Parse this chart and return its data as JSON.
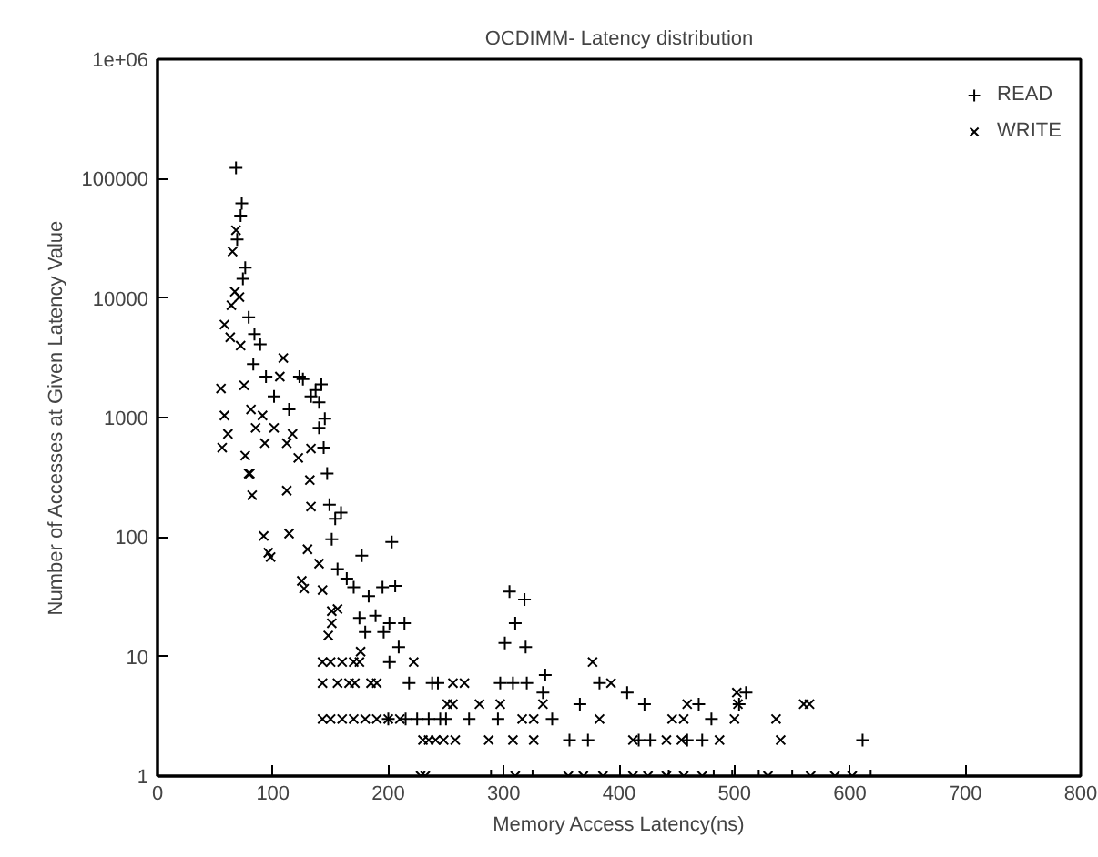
{
  "chart_data": {
    "type": "scatter",
    "title": "OCDIMM- Latency distribution",
    "xlabel": "Memory Access Latency(ns)",
    "ylabel": "Number of Accesses at Given Latency Value",
    "log": "y",
    "xlim": [
      0,
      800
    ],
    "ylim": [
      1,
      1000000
    ],
    "xticks": [
      0,
      100,
      200,
      300,
      400,
      500,
      600,
      700,
      800
    ],
    "yticks": [
      1,
      10,
      100,
      1000,
      10000,
      100000,
      {
        "value": 1000000,
        "label": "1e+06"
      }
    ],
    "grid": false,
    "legend": "top right",
    "series": [
      {
        "name": "READ",
        "color": "#000000",
        "marker": "cross",
        "x": [
          68,
          73,
          72,
          69,
          76,
          74,
          79,
          84,
          89,
          83,
          94,
          101,
          123,
          126,
          142,
          137,
          140,
          145,
          140,
          144,
          133,
          114,
          147,
          149,
          159,
          154,
          203,
          151,
          177,
          156,
          164,
          170,
          195,
          206,
          183,
          189,
          175,
          201,
          214,
          180,
          196,
          209,
          201,
          218,
          238,
          200,
          215,
          225,
          235,
          245,
          305,
          318,
          310,
          301,
          319,
          243,
          297,
          308,
          320,
          336,
          334,
          366,
          383,
          407,
          422,
          469,
          480,
          510,
          504,
          611,
          357,
          373,
          417,
          427,
          459,
          472,
          342,
          250,
          270,
          295,
          289,
          325,
          443,
          482,
          498,
          521,
          550,
          618
        ],
        "values": [
          123000,
          62000,
          49000,
          31000,
          18000,
          14500,
          6900,
          5000,
          4100,
          2800,
          2200,
          1500,
          2200,
          2100,
          1900,
          1700,
          1340,
          980,
          820,
          560,
          1500,
          1170,
          340,
          187,
          160,
          142,
          91,
          96,
          70,
          54,
          45,
          38,
          38,
          39,
          32,
          22,
          21,
          19,
          19,
          16,
          16,
          12,
          9,
          6,
          6,
          3,
          3,
          3,
          3,
          3,
          35,
          30,
          19,
          13,
          12,
          6,
          6,
          6,
          6,
          7,
          5,
          4,
          6,
          5,
          4,
          4,
          3,
          5,
          4,
          2,
          2,
          2,
          2,
          2,
          2,
          2,
          3,
          3,
          3,
          3,
          1,
          1,
          1,
          1,
          1,
          1,
          1,
          1
        ]
      },
      {
        "name": "WRITE",
        "color": "#000000",
        "marker": "x",
        "x": [
          68,
          65,
          67,
          64,
          71,
          58,
          63,
          72,
          55,
          58,
          61,
          56,
          75,
          109,
          106,
          81,
          85,
          93,
          101,
          112,
          122,
          76,
          91,
          117,
          133,
          80,
          79,
          82,
          112,
          132,
          133,
          92,
          114,
          96,
          98,
          130,
          140,
          125,
          127,
          143,
          151,
          156,
          151,
          148,
          176,
          222,
          143,
          150,
          160,
          170,
          175,
          143,
          156,
          166,
          171,
          185,
          190,
          143,
          150,
          160,
          170,
          180,
          190,
          200,
          210,
          251,
          230,
          241,
          228,
          256,
          266,
          377,
          393,
          334,
          256,
          279,
          297,
          459,
          503,
          560,
          565,
          502,
          316,
          326,
          383,
          446,
          456,
          500,
          536,
          287,
          308,
          326,
          412,
          441,
          454,
          487,
          540,
          235,
          248,
          258,
          232,
          310,
          356,
          369,
          386,
          412,
          425,
          441,
          456,
          472,
          529,
          566,
          587,
          602
        ],
        "values": [
          37000,
          24500,
          11300,
          8700,
          10200,
          6000,
          4700,
          4000,
          1750,
          1040,
          730,
          560,
          1860,
          3150,
          2200,
          1170,
          820,
          610,
          820,
          610,
          460,
          480,
          1040,
          730,
          550,
          340,
          340,
          224,
          245,
          300,
          180,
          102,
          107,
          74,
          68,
          79,
          60,
          43,
          37,
          36,
          24,
          25,
          19,
          15,
          11,
          9,
          9,
          9,
          9,
          9,
          9,
          6,
          6,
          6,
          6,
          6,
          6,
          3,
          3,
          3,
          3,
          3,
          3,
          3,
          3,
          4,
          2,
          2,
          1,
          6,
          6,
          9,
          6,
          4,
          4,
          4,
          4,
          4,
          4,
          4,
          4,
          5,
          3,
          3,
          3,
          3,
          3,
          3,
          3,
          2,
          2,
          2,
          2,
          2,
          2,
          2,
          2,
          2,
          2,
          2,
          1,
          1,
          1,
          1,
          1,
          1,
          1,
          1,
          1,
          1,
          1,
          1,
          1,
          1
        ]
      }
    ]
  }
}
